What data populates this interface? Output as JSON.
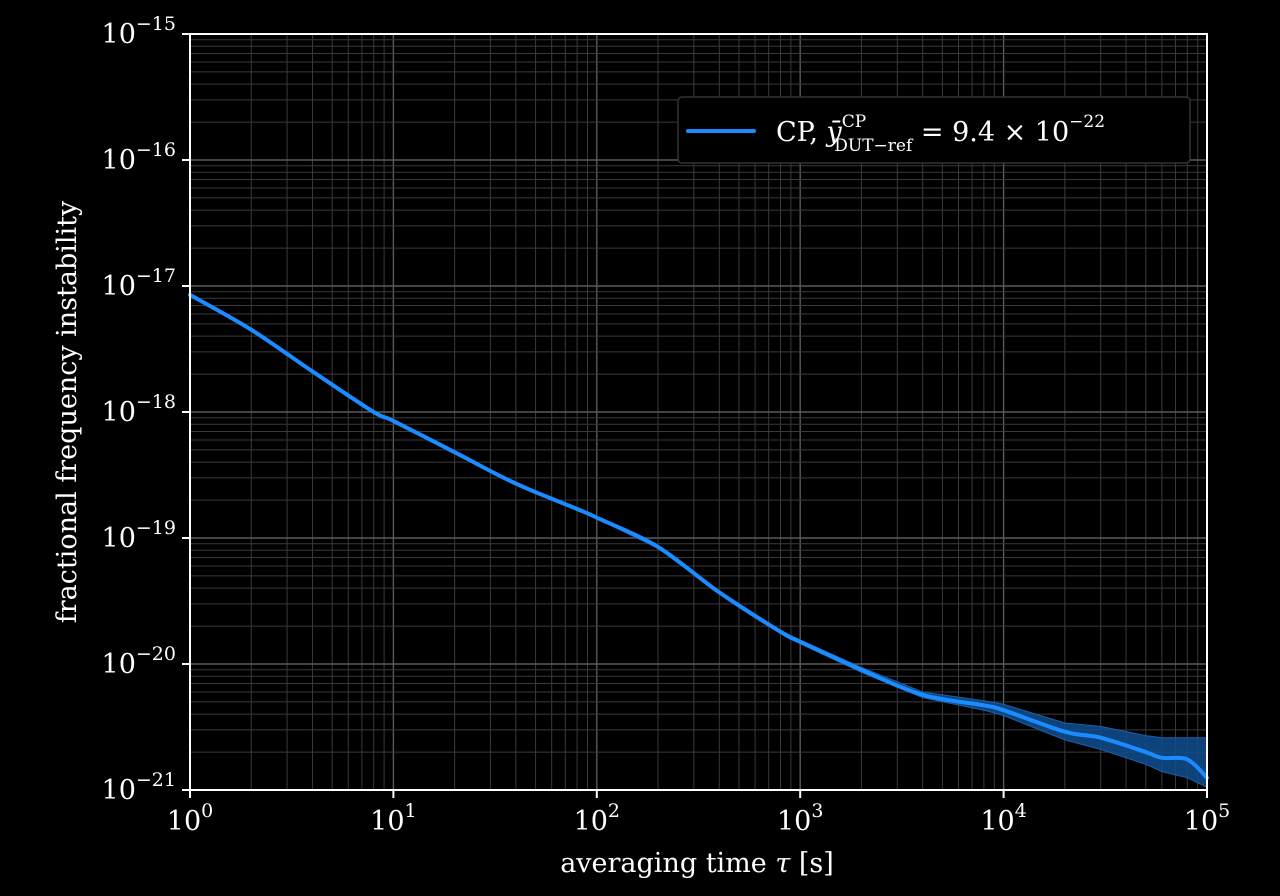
{
  "chart_data": {
    "type": "line",
    "xscale": "log",
    "yscale": "log",
    "xlim": [
      1,
      100000
    ],
    "ylim": [
      1e-21,
      1e-15
    ],
    "grid": true,
    "legend_placement": "top-right",
    "xlabel_parts": {
      "pre": "averaging time ",
      "sym": "τ",
      "post": " [s]"
    },
    "ylabel": "fractional frequency instability",
    "x_ticks": [
      {
        "base": "10",
        "exp": "0",
        "value": 1
      },
      {
        "base": "10",
        "exp": "1",
        "value": 10
      },
      {
        "base": "10",
        "exp": "2",
        "value": 100
      },
      {
        "base": "10",
        "exp": "3",
        "value": 1000
      },
      {
        "base": "10",
        "exp": "4",
        "value": 10000
      },
      {
        "base": "10",
        "exp": "5",
        "value": 100000
      }
    ],
    "y_ticks": [
      {
        "base": "10",
        "exp": "−15",
        "value": 1e-15
      },
      {
        "base": "10",
        "exp": "−16",
        "value": 1e-16
      },
      {
        "base": "10",
        "exp": "−17",
        "value": 1e-17
      },
      {
        "base": "10",
        "exp": "−18",
        "value": 1e-18
      },
      {
        "base": "10",
        "exp": "−19",
        "value": 1e-19
      },
      {
        "base": "10",
        "exp": "−20",
        "value": 1e-20
      },
      {
        "base": "10",
        "exp": "−21",
        "value": 1e-21
      }
    ],
    "series": [
      {
        "legend": {
          "prefix": "CP, ",
          "sym": "ȳ",
          "sup": "CP",
          "sub": "DUT−ref",
          "eq": " = 9.4 × 10",
          "exp": "−22"
        },
        "color": "#1a8cff",
        "band_color": "#0f4f8f",
        "x": [
          1,
          2,
          4,
          8,
          10,
          20,
          40,
          80,
          100,
          200,
          400,
          800,
          1000,
          2000,
          4000,
          8000,
          10000,
          20000,
          30000,
          50000,
          60000,
          80000,
          100000
        ],
        "y": [
          8.5e-18,
          4.5e-18,
          2.1e-18,
          1e-18,
          8.5e-19,
          4.8e-19,
          2.7e-19,
          1.7e-19,
          1.45e-19,
          8.5e-20,
          3.7e-20,
          1.8e-20,
          1.5e-20,
          9e-21,
          5.7e-21,
          4.7e-21,
          4.3e-21,
          2.9e-21,
          2.6e-21,
          2e-21,
          1.8e-21,
          1.75e-21,
          1.25e-21
        ],
        "band_low": [
          8.4e-18,
          4.45e-18,
          2.08e-18,
          9.9e-19,
          8.4e-19,
          4.74e-19,
          2.66e-19,
          1.67e-19,
          1.42e-19,
          8.3e-20,
          3.6e-20,
          1.75e-20,
          1.45e-20,
          8.6e-21,
          5.4e-21,
          4.3e-21,
          3.9e-21,
          2.5e-21,
          2.1e-21,
          1.6e-21,
          1.4e-21,
          1.25e-21,
          1.05e-21
        ],
        "band_high": [
          8.6e-18,
          4.55e-18,
          2.12e-18,
          1.01e-18,
          8.6e-19,
          4.86e-19,
          2.74e-19,
          1.73e-19,
          1.48e-19,
          8.7e-20,
          3.8e-20,
          1.85e-20,
          1.55e-20,
          9.4e-21,
          6e-21,
          5.1e-21,
          4.8e-21,
          3.4e-21,
          3.2e-21,
          2.7e-21,
          2.6e-21,
          2.6e-21,
          2.6e-21
        ]
      }
    ]
  }
}
